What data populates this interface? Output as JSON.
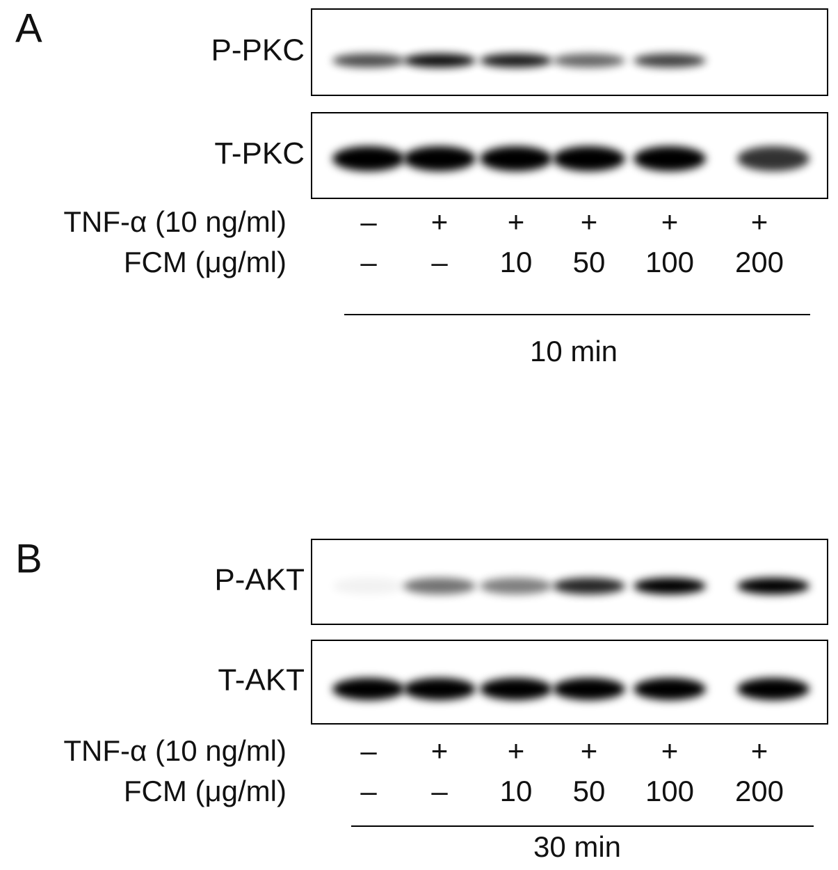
{
  "panels": [
    {
      "label": "A",
      "blots": [
        "P-PKC",
        "T-PKC"
      ],
      "treatments": [
        {
          "label": "TNF-α (10 ng/ml)",
          "lanes": [
            "–",
            "+",
            "+",
            "+",
            "+",
            "+"
          ]
        },
        {
          "label": "FCM (μg/ml)",
          "lanes": [
            "–",
            "–",
            "10",
            "50",
            "100",
            "200"
          ]
        }
      ],
      "time": "10 min"
    },
    {
      "label": "B",
      "blots": [
        "P-AKT",
        "T-AKT"
      ],
      "treatments": [
        {
          "label": "TNF-α (10 ng/ml)",
          "lanes": [
            "–",
            "+",
            "+",
            "+",
            "+",
            "+"
          ]
        },
        {
          "label": "FCM (μg/ml)",
          "lanes": [
            "–",
            "–",
            "10",
            "50",
            "100",
            "200"
          ]
        }
      ],
      "time": "30 min"
    }
  ]
}
